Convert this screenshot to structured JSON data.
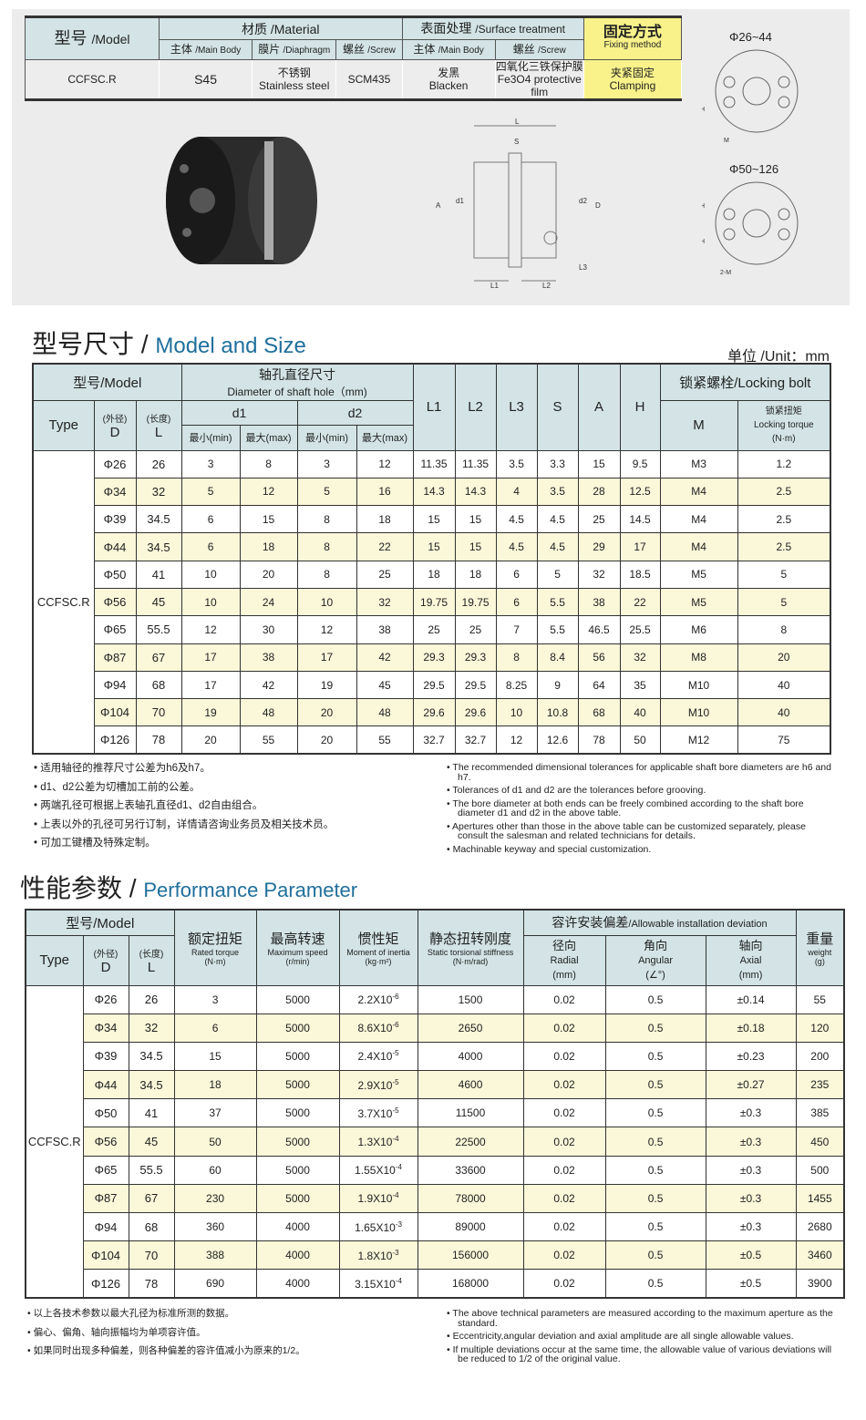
{
  "spec": {
    "model": "型号",
    "model_en": "/Model",
    "material": "材质",
    "material_en": "/Material",
    "surface": "表面处理",
    "surface_en": "/Surface treatment",
    "fixing": "固定方式",
    "fixing_en": "Fixing method",
    "sub": [
      [
        "主体",
        "/Main Body"
      ],
      [
        "膜片",
        "/Diaphragm"
      ],
      [
        "螺丝",
        "/Screw"
      ],
      [
        "主体",
        "/Main Body"
      ],
      [
        "螺丝",
        "/Screw"
      ]
    ],
    "values": {
      "model": "CCFSC.R",
      "body": "S45",
      "diaphragm_zh": "不锈钢",
      "diaphragm_en": "Stainless steel",
      "screw": "SCM435",
      "surface_zh": "发黑",
      "surface_en": "Blacken",
      "surface_screw_zh": "四氧化三铁保护膜",
      "surface_screw_en": "Fe3O4 protective film",
      "fixing_zh": "夹紧固定",
      "fixing_en": "Clamping"
    }
  },
  "drawing": {
    "labels": [
      "L",
      "S",
      "A",
      "d1",
      "d2",
      "D",
      "L1",
      "L2",
      "L3"
    ],
    "range1": "Φ26~44",
    "range2": "Φ50~126",
    "h": "H",
    "m": "M",
    "m2": "2-M"
  },
  "size": {
    "title_zh": "型号尺寸",
    "title_en": "Model and Size",
    "unit": "单位 /Unit：mm",
    "h": {
      "model": "型号/Model",
      "shaft_zh": "轴孔直径尺寸",
      "shaft_en": "Diameter of shaft hole（mm)",
      "d1": "d1",
      "d2": "d2",
      "L1": "L1",
      "L2": "L2",
      "L3": "L3",
      "S": "S",
      "A": "A",
      "H": "H",
      "bolt": "锁紧螺栓/Locking bolt",
      "type": "Type",
      "outer": "(外径)",
      "D": "D",
      "len": "(长度)",
      "L": "L",
      "min": "最小(min)",
      "max": "最大(max)",
      "M": "M",
      "torque_zh": "锁紧扭矩",
      "torque_en": "Locking torque",
      "torque_unit": "(N·m)"
    },
    "type": "CCFSC.R",
    "rows": [
      [
        "Φ26",
        "26",
        "3",
        "8",
        "3",
        "12",
        "11.35",
        "11.35",
        "3.5",
        "3.3",
        "15",
        "9.5",
        "M3",
        "1.2"
      ],
      [
        "Φ34",
        "32",
        "5",
        "12",
        "5",
        "16",
        "14.3",
        "14.3",
        "4",
        "3.5",
        "28",
        "12.5",
        "M4",
        "2.5"
      ],
      [
        "Φ39",
        "34.5",
        "6",
        "15",
        "8",
        "18",
        "15",
        "15",
        "4.5",
        "4.5",
        "25",
        "14.5",
        "M4",
        "2.5"
      ],
      [
        "Φ44",
        "34.5",
        "6",
        "18",
        "8",
        "22",
        "15",
        "15",
        "4.5",
        "4.5",
        "29",
        "17",
        "M4",
        "2.5"
      ],
      [
        "Φ50",
        "41",
        "10",
        "20",
        "8",
        "25",
        "18",
        "18",
        "6",
        "5",
        "32",
        "18.5",
        "M5",
        "5"
      ],
      [
        "Φ56",
        "45",
        "10",
        "24",
        "10",
        "32",
        "19.75",
        "19.75",
        "6",
        "5.5",
        "38",
        "22",
        "M5",
        "5"
      ],
      [
        "Φ65",
        "55.5",
        "12",
        "30",
        "12",
        "38",
        "25",
        "25",
        "7",
        "5.5",
        "46.5",
        "25.5",
        "M6",
        "8"
      ],
      [
        "Φ87",
        "67",
        "17",
        "38",
        "17",
        "42",
        "29.3",
        "29.3",
        "8",
        "8.4",
        "56",
        "32",
        "M8",
        "20"
      ],
      [
        "Φ94",
        "68",
        "17",
        "42",
        "19",
        "45",
        "29.5",
        "29.5",
        "8.25",
        "9",
        "64",
        "35",
        "M10",
        "40"
      ],
      [
        "Φ104",
        "70",
        "19",
        "48",
        "20",
        "48",
        "29.6",
        "29.6",
        "10",
        "10.8",
        "68",
        "40",
        "M10",
        "40"
      ],
      [
        "Φ126",
        "78",
        "20",
        "55",
        "20",
        "55",
        "32.7",
        "32.7",
        "12",
        "12.6",
        "78",
        "50",
        "M12",
        "75"
      ]
    ],
    "notes_zh": [
      "适用轴径的推荐尺寸公差为h6及h7。",
      "d1、d2公差为切槽加工前的公差。",
      "两端孔径可根据上表轴孔直径d1、d2自由组合。",
      "上表以外的孔径可另行订制，详情请咨询业务员及相关技术员。",
      "可加工键槽及特殊定制。"
    ],
    "notes_en": [
      "The recommended dimensional tolerances for applicable shaft bore diameters are h6 and h7.",
      "Tolerances of d1 and d2 are the tolerances before grooving.",
      "The bore diameter at both ends can be freely combined according to the shaft bore diameter d1 and d2 in the above table.",
      "Apertures other than those in the above table can be customized separately, please consult the salesman and related technicians for details.",
      "Machinable keyway and special customization."
    ]
  },
  "perf": {
    "title_zh": "性能参数",
    "title_en": "Performance Parameter",
    "h": {
      "model": "型号/Model",
      "type": "Type",
      "outer": "(外径)",
      "D": "D",
      "len": "(长度)",
      "L": "L",
      "torque_zh": "额定扭矩",
      "torque_en": "Rated torque",
      "torque_u": "(N·m)",
      "speed_zh": "最高转速",
      "speed_en": "Maximum speed",
      "speed_u": "(r/min)",
      "inertia_zh": "惯性矩",
      "inertia_en": "Moment of inertia",
      "inertia_u": "(kg·m²)",
      "stiff_zh": "静态扭转刚度",
      "stiff_en": "Static torsional stiffness",
      "stiff_u": "(N·m/rad)",
      "dev": "容许安装偏差",
      "dev_en": "/Allowable installation deviation",
      "radial_zh": "径向",
      "radial_en": "Radial",
      "radial_u": "(mm)",
      "ang_zh": "角向",
      "ang_en": "Angular",
      "ang_u": "(∠°)",
      "axial_zh": "轴向",
      "axial_en": "Axial",
      "axial_u": "(mm)",
      "weight_zh": "重量",
      "weight_en": "weight",
      "weight_u": "(g)"
    },
    "type": "CCFSC.R",
    "rows": [
      [
        "Φ26",
        "26",
        "3",
        "5000",
        "2.2X10",
        "-6",
        "1500",
        "0.02",
        "0.5",
        "±0.14",
        "55"
      ],
      [
        "Φ34",
        "32",
        "6",
        "5000",
        "8.6X10",
        "-6",
        "2650",
        "0.02",
        "0.5",
        "±0.18",
        "120"
      ],
      [
        "Φ39",
        "34.5",
        "15",
        "5000",
        "2.4X10",
        "-5",
        "4000",
        "0.02",
        "0.5",
        "±0.23",
        "200"
      ],
      [
        "Φ44",
        "34.5",
        "18",
        "5000",
        "2.9X10",
        "-5",
        "4600",
        "0.02",
        "0.5",
        "±0.27",
        "235"
      ],
      [
        "Φ50",
        "41",
        "37",
        "5000",
        "3.7X10",
        "-5",
        "11500",
        "0.02",
        "0.5",
        "±0.3",
        "385"
      ],
      [
        "Φ56",
        "45",
        "50",
        "5000",
        "1.3X10",
        "-4",
        "22500",
        "0.02",
        "0.5",
        "±0.3",
        "450"
      ],
      [
        "Φ65",
        "55.5",
        "60",
        "5000",
        "1.55X10",
        "-4",
        "33600",
        "0.02",
        "0.5",
        "±0.3",
        "500"
      ],
      [
        "Φ87",
        "67",
        "230",
        "5000",
        "1.9X10",
        "-4",
        "78000",
        "0.02",
        "0.5",
        "±0.3",
        "1455"
      ],
      [
        "Φ94",
        "68",
        "360",
        "4000",
        "1.65X10",
        "-3",
        "89000",
        "0.02",
        "0.5",
        "±0.3",
        "2680"
      ],
      [
        "Φ104",
        "70",
        "388",
        "4000",
        "1.8X10",
        "-3",
        "156000",
        "0.02",
        "0.5",
        "±0.5",
        "3460"
      ],
      [
        "Φ126",
        "78",
        "690",
        "4000",
        "3.15X10",
        "-4",
        "168000",
        "0.02",
        "0.5",
        "±0.5",
        "3900"
      ]
    ],
    "notes_zh": [
      "以上各技术参数以最大孔径为标准所测的数据。",
      "偏心、偏角、轴向振幅均为单项容许值。",
      "如果同时出现多种偏差，则各种偏差的容许值减小为原来的1/2。"
    ],
    "notes_en": [
      "The above technical parameters are measured according to the maximum aperture as the standard.",
      "Eccentricity,angular deviation and axial amplitude are all single allowable values.",
      "If multiple deviations occur at the same time, the allowable value of various deviations will be reduced to 1/2 of the original value."
    ]
  }
}
